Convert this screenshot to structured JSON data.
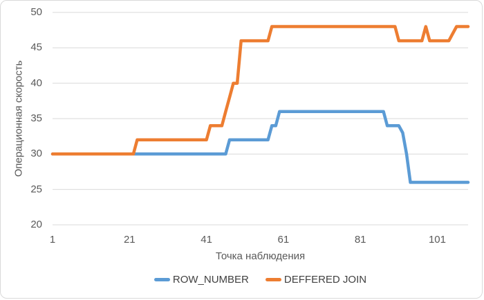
{
  "chart_data": {
    "type": "line",
    "title": "",
    "xlabel": "Точка наблюдения",
    "ylabel": "Операционная скорость",
    "x_range": [
      1,
      109
    ],
    "ylim": [
      20,
      50
    ],
    "x_ticks": [
      "1",
      "21",
      "41",
      "61",
      "81",
      "101"
    ],
    "x_tick_values": [
      1,
      21,
      41,
      61,
      81,
      101
    ],
    "y_ticks": [
      "50",
      "45",
      "40",
      "35",
      "30",
      "25",
      "20"
    ],
    "y_tick_values": [
      50,
      45,
      40,
      35,
      30,
      25,
      20
    ],
    "grid": "horizontal",
    "gridline_color": "#d9d9d9",
    "legend_position": "bottom",
    "series": [
      {
        "name": "ROW_NUMBER",
        "color": "#5B9BD5",
        "values": [
          30,
          30,
          30,
          30,
          30,
          30,
          30,
          30,
          30,
          30,
          30,
          30,
          30,
          30,
          30,
          30,
          30,
          30,
          30,
          30,
          30,
          30,
          30,
          30,
          30,
          30,
          30,
          30,
          30,
          30,
          30,
          30,
          30,
          30,
          30,
          30,
          30,
          30,
          30,
          30,
          30,
          30,
          30,
          30,
          30,
          30,
          32,
          32,
          32,
          32,
          32,
          32,
          32,
          32,
          32,
          32,
          32,
          34,
          34,
          36,
          36,
          36,
          36,
          36,
          36,
          36,
          36,
          36,
          36,
          36,
          36,
          36,
          36,
          36,
          36,
          36,
          36,
          36,
          36,
          36,
          36,
          36,
          36,
          36,
          36,
          36,
          36,
          34,
          34,
          34,
          34,
          33,
          30,
          26,
          26,
          26,
          26,
          26,
          26,
          26,
          26,
          26,
          26,
          26,
          26,
          26,
          26,
          26,
          26
        ]
      },
      {
        "name": "DEFFERED JOIN",
        "color": "#ED7D31",
        "values": [
          30,
          30,
          30,
          30,
          30,
          30,
          30,
          30,
          30,
          30,
          30,
          30,
          30,
          30,
          30,
          30,
          30,
          30,
          30,
          30,
          30,
          30,
          32,
          32,
          32,
          32,
          32,
          32,
          32,
          32,
          32,
          32,
          32,
          32,
          32,
          32,
          32,
          32,
          32,
          32,
          32,
          34,
          34,
          34,
          34,
          36,
          38,
          40,
          40,
          46,
          46,
          46,
          46,
          46,
          46,
          46,
          46,
          48,
          48,
          48,
          48,
          48,
          48,
          48,
          48,
          48,
          48,
          48,
          48,
          48,
          48,
          48,
          48,
          48,
          48,
          48,
          48,
          48,
          48,
          48,
          48,
          48,
          48,
          48,
          48,
          48,
          48,
          48,
          48,
          48,
          46,
          46,
          46,
          46,
          46,
          46,
          46,
          48,
          46,
          46,
          46,
          46,
          46,
          46,
          47,
          48,
          48,
          48,
          48
        ]
      }
    ]
  }
}
